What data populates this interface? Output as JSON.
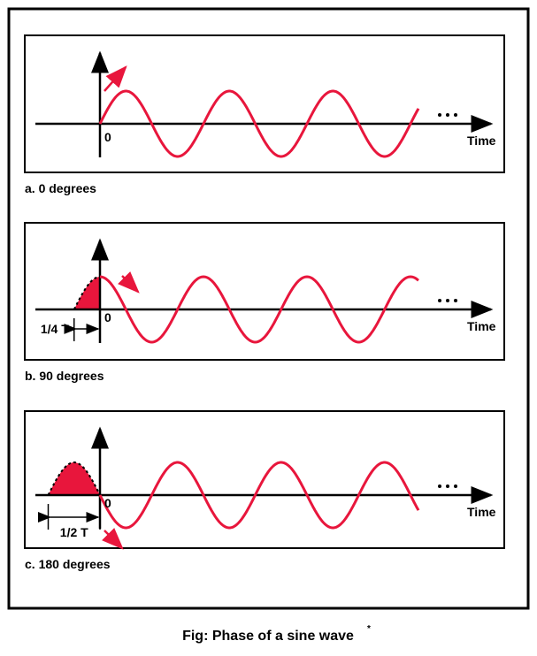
{
  "panels": [
    {
      "origin_label": "0",
      "axis_label": "Time",
      "caption": "a. 0 degrees"
    },
    {
      "origin_label": "0",
      "axis_label": "Time",
      "offset_label": "1/4 T",
      "caption": "b. 90 degrees"
    },
    {
      "origin_label": "0",
      "axis_label": "Time",
      "offset_label": "1/2 T",
      "caption": "c. 180 degrees"
    }
  ],
  "figure_caption": {
    "text": "Fig: Phase of a sine wave",
    "mark": "*"
  }
}
